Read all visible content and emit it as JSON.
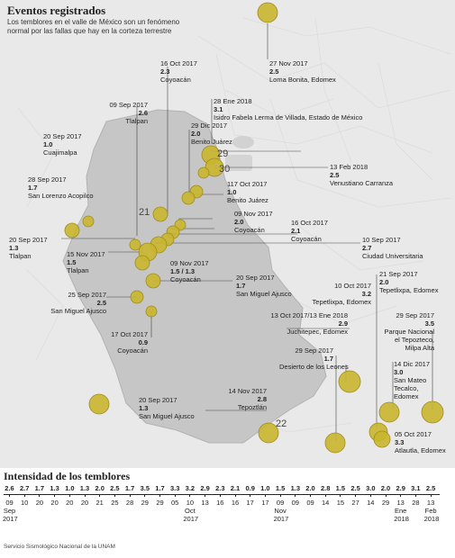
{
  "header": {
    "title": "Eventos registrados",
    "subtitle": "Los temblores en el valle de México son un fenómeno normal por las fallas que hay en la corteza terrestre"
  },
  "colors": {
    "marker": "#c9b62e",
    "marker_stroke": "#9e8d20",
    "map_bg": "#e9e9e9",
    "land": "#c9c9c9"
  },
  "map_numbers": [
    "29",
    "30",
    "21",
    "22"
  ],
  "events": [
    {
      "date": "27 Nov 2017",
      "magnitude": "2.5",
      "place": "Loma Bonita, Edomex"
    },
    {
      "date": "16 Oct 2017",
      "magnitude": "2.3",
      "place": "Coyoacán"
    },
    {
      "date": "09 Sep 2017",
      "magnitude": "2.6",
      "place": "Tlalpan"
    },
    {
      "date": "28 Ene 2018",
      "magnitude": "3.1",
      "place": "Isidro Fabela Lerma de Villada, Estado de México"
    },
    {
      "date": "29 Dic 2017",
      "magnitude": "2.0",
      "place": "Benito Juárez"
    },
    {
      "date": "20 Sep 2017",
      "magnitude": "1.0",
      "place": "Cuajimalpa"
    },
    {
      "date": "13 Feb 2018",
      "magnitude": "2.5",
      "place": "Venustiano Carranza"
    },
    {
      "date": "117 Oct 2017",
      "magnitude": "1.0",
      "place": "Benito Juárez"
    },
    {
      "date": "28 Sep 2017",
      "magnitude": "1.7",
      "place": "San Lorenzo Acopilco"
    },
    {
      "date": "09 Nov 2017",
      "magnitude": "2.0",
      "place": "Coyoacán"
    },
    {
      "date": "16 Oct 2017",
      "magnitude": "2.1",
      "place": "Coyoacán"
    },
    {
      "date": "20 Sep 2017",
      "magnitude": "1.3",
      "place": "Tlalpan"
    },
    {
      "date": "15 Nov 2017",
      "magnitude": "1.5",
      "place": "Tlalpan"
    },
    {
      "date": "10 Sep 2017",
      "magnitude": "2.7",
      "place": "Ciudad Universitaria"
    },
    {
      "date": "09 Nov 2017",
      "magnitude": "1.5 / 1.3",
      "place": "Coyoacán"
    },
    {
      "date": "20 Sep 2017",
      "magnitude": "1.7",
      "place": "San Miguel Ajusco"
    },
    {
      "date": "21 Sep 2017",
      "magnitude": "2.0",
      "place": "Tepetlixpa, Edomex"
    },
    {
      "date": "10 Oct 2017",
      "magnitude": "3.2",
      "place": "Tepetlixpa, Edomex"
    },
    {
      "date": "25 Sep 2017",
      "magnitude": "2.5",
      "place": "San Miguel Ajusco"
    },
    {
      "date": "13 Oct 2017/13 Ene 2018",
      "magnitude": "2.9",
      "place": "Juchitepec, Edomex"
    },
    {
      "date": "29 Sep 2017",
      "magnitude": "3.5",
      "place": "Parque Nacional el Tepozteco, Milpa Alta"
    },
    {
      "date": "17 Oct 2017",
      "magnitude": "0.9",
      "place": "Coyoacán"
    },
    {
      "date": "29 Sep 2017",
      "magnitude": "1.7",
      "place": "Desierto de los Leones"
    },
    {
      "date": "14 Dic 2017",
      "magnitude": "3.0",
      "place": "San Mateo Tecalco, Edomex"
    },
    {
      "date": "14 Nov 2017",
      "magnitude": "2.8",
      "place": "Tepoztlán"
    },
    {
      "date": "20 Sep 2017",
      "magnitude": "1.3",
      "place": "San Miguel Ajusco"
    },
    {
      "date": "05 Oct 2017",
      "magnitude": "3.3",
      "place": "Atlautla, Edomex"
    }
  ],
  "intensity": {
    "title": "Intensidad de los temblores",
    "items": [
      {
        "mag": "2.6",
        "day": "09",
        "month": "Sep",
        "year": "2017"
      },
      {
        "mag": "2.7",
        "day": "10"
      },
      {
        "mag": "1.7",
        "day": "20"
      },
      {
        "mag": "1.3",
        "day": "20"
      },
      {
        "mag": "1.0",
        "day": "20"
      },
      {
        "mag": "1.3",
        "day": "20"
      },
      {
        "mag": "2.0",
        "day": "21"
      },
      {
        "mag": "2.5",
        "day": "25"
      },
      {
        "mag": "1.7",
        "day": "28"
      },
      {
        "mag": "3.5",
        "day": "29"
      },
      {
        "mag": "1.7",
        "day": "29"
      },
      {
        "mag": "3.3",
        "day": "05"
      },
      {
        "mag": "3.2",
        "day": "10",
        "month": "Oct",
        "year": "2017"
      },
      {
        "mag": "2.9",
        "day": "13"
      },
      {
        "mag": "2.3",
        "day": "16"
      },
      {
        "mag": "2.1",
        "day": "16"
      },
      {
        "mag": "0.9",
        "day": "17"
      },
      {
        "mag": "1.0",
        "day": "17"
      },
      {
        "mag": "1.5",
        "day": "09",
        "month": "Nov",
        "year": "2017"
      },
      {
        "mag": "1.3",
        "day": "09"
      },
      {
        "mag": "2.0",
        "day": "09"
      },
      {
        "mag": "2.8",
        "day": "14"
      },
      {
        "mag": "1.5",
        "day": "15"
      },
      {
        "mag": "2.5",
        "day": "27"
      },
      {
        "mag": "3.0",
        "day": "14"
      },
      {
        "mag": "2.0",
        "day": "29"
      },
      {
        "mag": "2.9",
        "day": "13",
        "month": "Ene",
        "year": "2018"
      },
      {
        "mag": "3.1",
        "day": "28"
      },
      {
        "mag": "2.5",
        "day": "13",
        "month": "Feb",
        "year": "2018"
      }
    ]
  },
  "source": "Servicio Sismológico Nacional de la UNAM"
}
